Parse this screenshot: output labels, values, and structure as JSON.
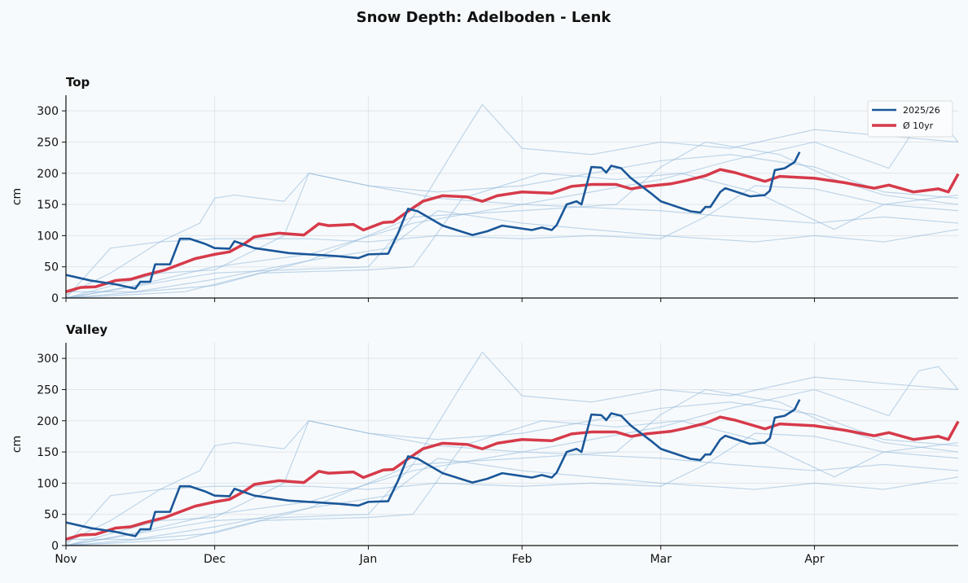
{
  "title": "Snow Depth: Adelboden - Lenk",
  "chart_data": {
    "type": "line",
    "title": "Snow Depth: Adelboden - Lenk",
    "x_ticks": [
      "Nov",
      "Dec",
      "Jan",
      "Feb",
      "Mar",
      "Apr"
    ],
    "x_tick_dates": [
      "2025-11-01",
      "2025-12-01",
      "2026-01-01",
      "2026-02-01",
      "2026-03-01",
      "2026-04-01"
    ],
    "xlim": [
      "2025-11-01",
      "2026-04-30"
    ],
    "ylabel": "cm",
    "ylim": [
      0,
      325
    ],
    "y_ticks": [
      0,
      50,
      100,
      150,
      200,
      250,
      300
    ],
    "grid": true,
    "legend_placement": "top-right",
    "colors": {
      "current": "#1a5799",
      "average": "#d63a4a",
      "past_seasons": "#8fb6d8"
    },
    "panels": [
      {
        "title": "Top",
        "legend": true
      },
      {
        "title": "Valley",
        "legend": false
      }
    ],
    "series": [
      {
        "name": "2025/26",
        "points": [
          [
            "11-01",
            37
          ],
          [
            "11-06",
            28
          ],
          [
            "11-11",
            22
          ],
          [
            "11-15",
            15
          ],
          [
            "11-16",
            26
          ],
          [
            "11-18",
            26
          ],
          [
            "11-19",
            54
          ],
          [
            "11-22",
            54
          ],
          [
            "11-24",
            95
          ],
          [
            "11-26",
            95
          ],
          [
            "11-29",
            87
          ],
          [
            "12-01",
            80
          ],
          [
            "12-04",
            79
          ],
          [
            "12-05",
            91
          ],
          [
            "12-09",
            80
          ],
          [
            "12-16",
            72
          ],
          [
            "12-26",
            67
          ],
          [
            "12-30",
            64
          ],
          [
            "01-01",
            70
          ],
          [
            "01-05",
            71
          ],
          [
            "01-07",
            104
          ],
          [
            "01-09",
            143
          ],
          [
            "01-11",
            139
          ],
          [
            "01-16",
            116
          ],
          [
            "01-22",
            101
          ],
          [
            "01-25",
            107
          ],
          [
            "01-28",
            116
          ],
          [
            "02-03",
            109
          ],
          [
            "02-05",
            113
          ],
          [
            "02-07",
            109
          ],
          [
            "02-08",
            117
          ],
          [
            "02-10",
            150
          ],
          [
            "02-12",
            155
          ],
          [
            "02-13",
            150
          ],
          [
            "02-15",
            210
          ],
          [
            "02-17",
            209
          ],
          [
            "02-18",
            201
          ],
          [
            "02-19",
            212
          ],
          [
            "02-21",
            208
          ],
          [
            "02-23",
            192
          ],
          [
            "02-27",
            168
          ],
          [
            "03-01",
            155
          ],
          [
            "03-07",
            139
          ],
          [
            "03-09",
            137
          ],
          [
            "03-10",
            146
          ],
          [
            "03-11",
            146
          ],
          [
            "03-13",
            170
          ],
          [
            "03-14",
            176
          ],
          [
            "03-19",
            163
          ],
          [
            "03-22",
            165
          ],
          [
            "03-23",
            172
          ],
          [
            "03-24",
            205
          ],
          [
            "03-26",
            208
          ],
          [
            "03-28",
            218
          ],
          [
            "03-29",
            234
          ]
        ]
      },
      {
        "name": "Ø 10yr",
        "points": [
          [
            "11-01",
            10
          ],
          [
            "11-04",
            17
          ],
          [
            "11-07",
            18
          ],
          [
            "11-11",
            28
          ],
          [
            "11-14",
            30
          ],
          [
            "11-17",
            37
          ],
          [
            "11-21",
            45
          ],
          [
            "11-24",
            54
          ],
          [
            "11-27",
            63
          ],
          [
            "12-01",
            70
          ],
          [
            "12-04",
            74
          ],
          [
            "12-07",
            87
          ],
          [
            "12-09",
            98
          ],
          [
            "12-14",
            104
          ],
          [
            "12-19",
            101
          ],
          [
            "12-22",
            119
          ],
          [
            "12-24",
            116
          ],
          [
            "12-29",
            118
          ],
          [
            "12-31",
            109
          ],
          [
            "01-04",
            121
          ],
          [
            "01-06",
            122
          ],
          [
            "01-09",
            139
          ],
          [
            "01-12",
            155
          ],
          [
            "01-16",
            164
          ],
          [
            "01-21",
            162
          ],
          [
            "01-24",
            155
          ],
          [
            "01-27",
            164
          ],
          [
            "02-01",
            170
          ],
          [
            "02-07",
            168
          ],
          [
            "02-11",
            179
          ],
          [
            "02-15",
            182
          ],
          [
            "02-20",
            182
          ],
          [
            "02-23",
            175
          ],
          [
            "02-26",
            179
          ],
          [
            "03-03",
            183
          ],
          [
            "03-06",
            188
          ],
          [
            "03-10",
            196
          ],
          [
            "03-13",
            206
          ],
          [
            "03-16",
            201
          ],
          [
            "03-22",
            187
          ],
          [
            "03-25",
            195
          ],
          [
            "04-01",
            192
          ],
          [
            "04-07",
            185
          ],
          [
            "04-13",
            176
          ],
          [
            "04-16",
            181
          ],
          [
            "04-21",
            170
          ],
          [
            "04-26",
            175
          ],
          [
            "04-28",
            170
          ],
          [
            "04-30",
            199
          ]
        ]
      }
    ],
    "past_seasons": [
      [
        [
          "11-01",
          0
        ],
        [
          "12-01",
          20
        ],
        [
          "12-20",
          60
        ],
        [
          "01-10",
          130
        ],
        [
          "01-20",
          260
        ],
        [
          "01-24",
          310
        ],
        [
          "02-01",
          240
        ],
        [
          "02-15",
          230
        ],
        [
          "03-01",
          250
        ],
        [
          "03-15",
          240
        ],
        [
          "04-01",
          270
        ],
        [
          "04-15",
          260
        ],
        [
          "04-30",
          250
        ]
      ],
      [
        [
          "11-01",
          5
        ],
        [
          "11-10",
          40
        ],
        [
          "11-20",
          90
        ],
        [
          "11-28",
          120
        ],
        [
          "12-01",
          160
        ],
        [
          "12-05",
          165
        ],
        [
          "12-15",
          155
        ],
        [
          "12-20",
          200
        ],
        [
          "01-01",
          180
        ],
        [
          "01-15",
          160
        ],
        [
          "02-01",
          150
        ],
        [
          "03-01",
          140
        ],
        [
          "03-15",
          130
        ],
        [
          "04-01",
          120
        ],
        [
          "04-15",
          130
        ],
        [
          "04-30",
          120
        ]
      ],
      [
        [
          "11-01",
          0
        ],
        [
          "11-10",
          80
        ],
        [
          "11-20",
          90
        ],
        [
          "12-01",
          95
        ],
        [
          "12-20",
          95
        ],
        [
          "01-01",
          90
        ],
        [
          "01-15",
          100
        ],
        [
          "02-01",
          95
        ],
        [
          "02-15",
          100
        ],
        [
          "03-01",
          95
        ],
        [
          "03-10",
          130
        ],
        [
          "03-20",
          180
        ],
        [
          "04-01",
          175
        ],
        [
          "04-15",
          150
        ],
        [
          "04-30",
          140
        ]
      ],
      [
        [
          "11-01",
          0
        ],
        [
          "11-20",
          40
        ],
        [
          "12-01",
          45
        ],
        [
          "12-15",
          100
        ],
        [
          "12-20",
          200
        ],
        [
          "01-01",
          180
        ],
        [
          "01-15",
          170
        ],
        [
          "02-01",
          180
        ],
        [
          "02-15",
          200
        ],
        [
          "03-01",
          220
        ],
        [
          "03-15",
          230
        ],
        [
          "04-01",
          210
        ],
        [
          "04-15",
          170
        ],
        [
          "04-30",
          160
        ]
      ],
      [
        [
          "11-01",
          0
        ],
        [
          "12-01",
          40
        ],
        [
          "12-15",
          45
        ],
        [
          "01-01",
          50
        ],
        [
          "01-10",
          130
        ],
        [
          "02-01",
          140
        ],
        [
          "02-20",
          150
        ],
        [
          "03-01",
          210
        ],
        [
          "03-10",
          250
        ],
        [
          "03-25",
          230
        ],
        [
          "04-05",
          190
        ],
        [
          "04-15",
          165
        ],
        [
          "04-30",
          150
        ]
      ],
      [
        [
          "11-01",
          10
        ],
        [
          "11-15",
          10
        ],
        [
          "12-01",
          30
        ],
        [
          "12-20",
          60
        ],
        [
          "01-05",
          80
        ],
        [
          "01-15",
          140
        ],
        [
          "02-01",
          120
        ],
        [
          "02-15",
          110
        ],
        [
          "03-01",
          100
        ],
        [
          "03-20",
          90
        ],
        [
          "04-01",
          100
        ],
        [
          "04-15",
          90
        ],
        [
          "04-30",
          110
        ]
      ],
      [
        [
          "11-01",
          0
        ],
        [
          "11-25",
          10
        ],
        [
          "12-10",
          40
        ],
        [
          "01-01",
          45
        ],
        [
          "01-10",
          50
        ],
        [
          "01-20",
          160
        ],
        [
          "02-05",
          200
        ],
        [
          "02-20",
          190
        ],
        [
          "03-05",
          200
        ],
        [
          "03-20",
          170
        ],
        [
          "04-05",
          110
        ],
        [
          "04-15",
          150
        ],
        [
          "04-30",
          165
        ]
      ],
      [
        [
          "11-01",
          0
        ],
        [
          "11-15",
          20
        ],
        [
          "12-01",
          50
        ],
        [
          "12-20",
          70
        ],
        [
          "01-10",
          120
        ],
        [
          "02-01",
          150
        ],
        [
          "02-15",
          170
        ],
        [
          "03-01",
          190
        ],
        [
          "03-15",
          220
        ],
        [
          "04-01",
          250
        ],
        [
          "04-10",
          225
        ],
        [
          "04-16",
          208
        ],
        [
          "04-22",
          280
        ],
        [
          "04-26",
          287
        ],
        [
          "04-30",
          250
        ]
      ]
    ]
  }
}
